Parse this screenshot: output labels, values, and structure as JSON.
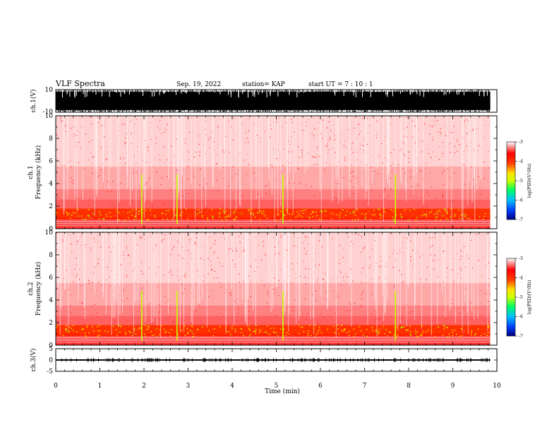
{
  "header": {
    "title": "VLF Spectra",
    "date": "Sep. 19, 2022",
    "station": "station= KAP",
    "start": "start  UT =   7 : 10 : 1"
  },
  "chart_data": [
    {
      "type": "line",
      "panel": "ch1-waveform",
      "ylabel": "ch.1(V)",
      "ylim": [
        -10,
        10
      ],
      "yticks": [
        "10",
        "-10"
      ],
      "xlim": [
        0,
        10
      ],
      "description_values": "dense full-scale oscillation spanning -10 to 10 V",
      "data_end_min": 9.85
    },
    {
      "type": "heatmap",
      "panel": "ch1-spectrogram",
      "ylabel": "ch.1\nFrequency (kHz)",
      "ylim": [
        0,
        10
      ],
      "yticks": [
        "0",
        "2",
        "4",
        "6",
        "8",
        "10"
      ],
      "xlim": [
        0,
        10
      ],
      "data_end_min": 9.85,
      "colorbar": {
        "label": "log(PSD)(V²/Hz)",
        "range": [
          -7,
          -3
        ],
        "ticks": [
          "-3",
          "-4",
          "-5",
          "-6",
          "-7"
        ],
        "colors": [
          "#000080",
          "#0040ff",
          "#00c0ff",
          "#00ff60",
          "#d0ff00",
          "#ffe000",
          "#ff4000",
          "#ff0000",
          "#ffffff"
        ]
      },
      "spikes_min": [
        1.95,
        2.75,
        5.15,
        7.7
      ]
    },
    {
      "type": "heatmap",
      "panel": "ch2-spectrogram",
      "ylabel": "ch.2\nFrequency (kHz)",
      "ylim": [
        0,
        10
      ],
      "yticks": [
        "0",
        "2",
        "4",
        "6",
        "8",
        "10"
      ],
      "xlim": [
        0,
        10
      ],
      "data_end_min": 9.85,
      "colorbar": {
        "label": "log(PSD)(V²/Hz)",
        "range": [
          -7,
          -3
        ],
        "ticks": [
          "-3",
          "-4",
          "-5",
          "-6",
          "-7"
        ],
        "colors": [
          "#000080",
          "#0040ff",
          "#00c0ff",
          "#00ff60",
          "#d0ff00",
          "#ffe000",
          "#ff4000",
          "#ff0000",
          "#ffffff"
        ]
      },
      "spikes_min": [
        1.95,
        2.75,
        5.15,
        7.7
      ]
    },
    {
      "type": "line",
      "panel": "ch3-waveform",
      "ylabel": "ch.3(V)",
      "ylim": [
        -5,
        5
      ],
      "yticks": [
        "5",
        "0",
        "-5"
      ],
      "xlim": [
        0,
        10
      ],
      "level_v": [
        -0.3,
        0.3
      ],
      "data_end_min": 9.85,
      "xlabel": "Time (min)",
      "xticks": [
        "0",
        "1",
        "2",
        "3",
        "4",
        "5",
        "6",
        "7",
        "8",
        "9",
        "10"
      ]
    }
  ]
}
